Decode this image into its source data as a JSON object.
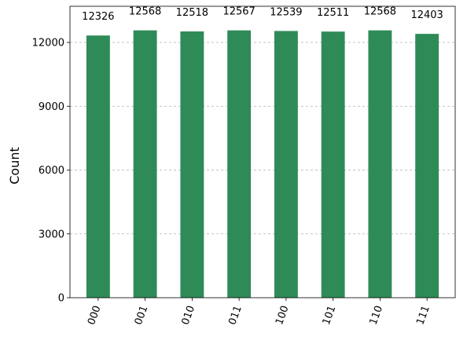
{
  "chart_data": {
    "type": "bar",
    "title": "",
    "xlabel": "",
    "ylabel": "Count",
    "categories": [
      "000",
      "001",
      "010",
      "011",
      "100",
      "101",
      "110",
      "111"
    ],
    "values": [
      12326,
      12568,
      12518,
      12567,
      12539,
      12511,
      12568,
      12403
    ],
    "data_labels": [
      "12326",
      "12568",
      "12518",
      "12567",
      "12539",
      "12511",
      "12568",
      "12403"
    ],
    "yticks": [
      0,
      3000,
      6000,
      9000,
      12000
    ],
    "ytick_labels": [
      "0",
      "3000",
      "6000",
      "9000",
      "12000"
    ],
    "ylim": [
      0,
      13700
    ],
    "grid": "horizontal dashed",
    "bar_color": "#2e8b57",
    "grid_color": "#b0b0b0",
    "xtick_rotation_deg": -70
  }
}
